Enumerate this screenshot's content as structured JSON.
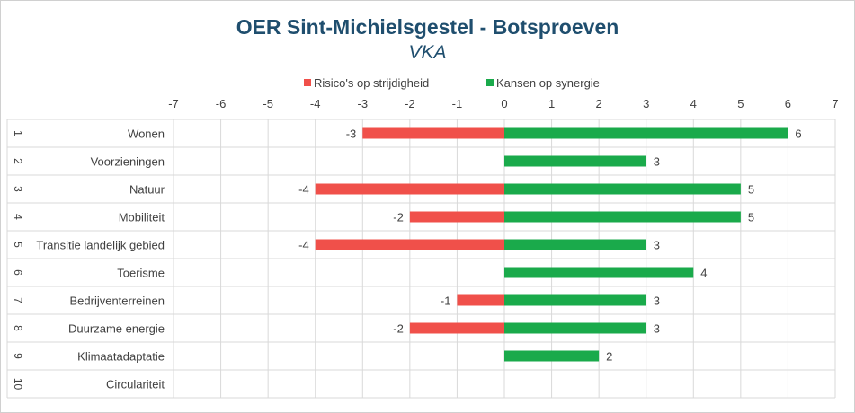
{
  "colors": {
    "risk": "#f0504a",
    "chance": "#1aaa4b",
    "title": "#1f4e6e",
    "grid": "#d9d9d9",
    "text": "#404040"
  },
  "chart_data": {
    "type": "bar",
    "orientation": "horizontal",
    "title": "OER Sint-Michielsgestel  - Botsproeven",
    "subtitle": "VKA",
    "xlim": [
      -7,
      7
    ],
    "xticks": [
      "-7",
      "-6",
      "-5",
      "-4",
      "-3",
      "-2",
      "-1",
      "0",
      "1",
      "2",
      "3",
      "4",
      "5",
      "6",
      "7"
    ],
    "legend_position": "top",
    "grid": true,
    "row_numbers": [
      "1",
      "2",
      "3",
      "4",
      "5",
      "6",
      "7",
      "8",
      "9",
      "10"
    ],
    "categories": [
      "Wonen",
      "Voorzieningen",
      "Natuur",
      "Mobiliteit",
      "Transitie landelijk gebied",
      "Toerisme",
      "Bedrijventerreinen",
      "Duurzame energie",
      "Klimaatadaptatie",
      "Circulariteit"
    ],
    "series": [
      {
        "name": "Risico's op strijdigheid",
        "color": "#f0504a",
        "values": [
          -3,
          null,
          -4,
          -2,
          -4,
          null,
          -1,
          -2,
          null,
          null
        ],
        "labels": [
          "-3",
          "",
          "-4",
          "-2",
          "-4",
          "",
          "-1",
          "-2",
          "",
          ""
        ]
      },
      {
        "name": "Kansen op synergie",
        "color": "#1aaa4b",
        "values": [
          6,
          3,
          5,
          5,
          3,
          4,
          3,
          3,
          2,
          null
        ],
        "labels": [
          "6",
          "3",
          "5",
          "5",
          "3",
          "4",
          "3",
          "3",
          "2",
          ""
        ]
      }
    ]
  }
}
